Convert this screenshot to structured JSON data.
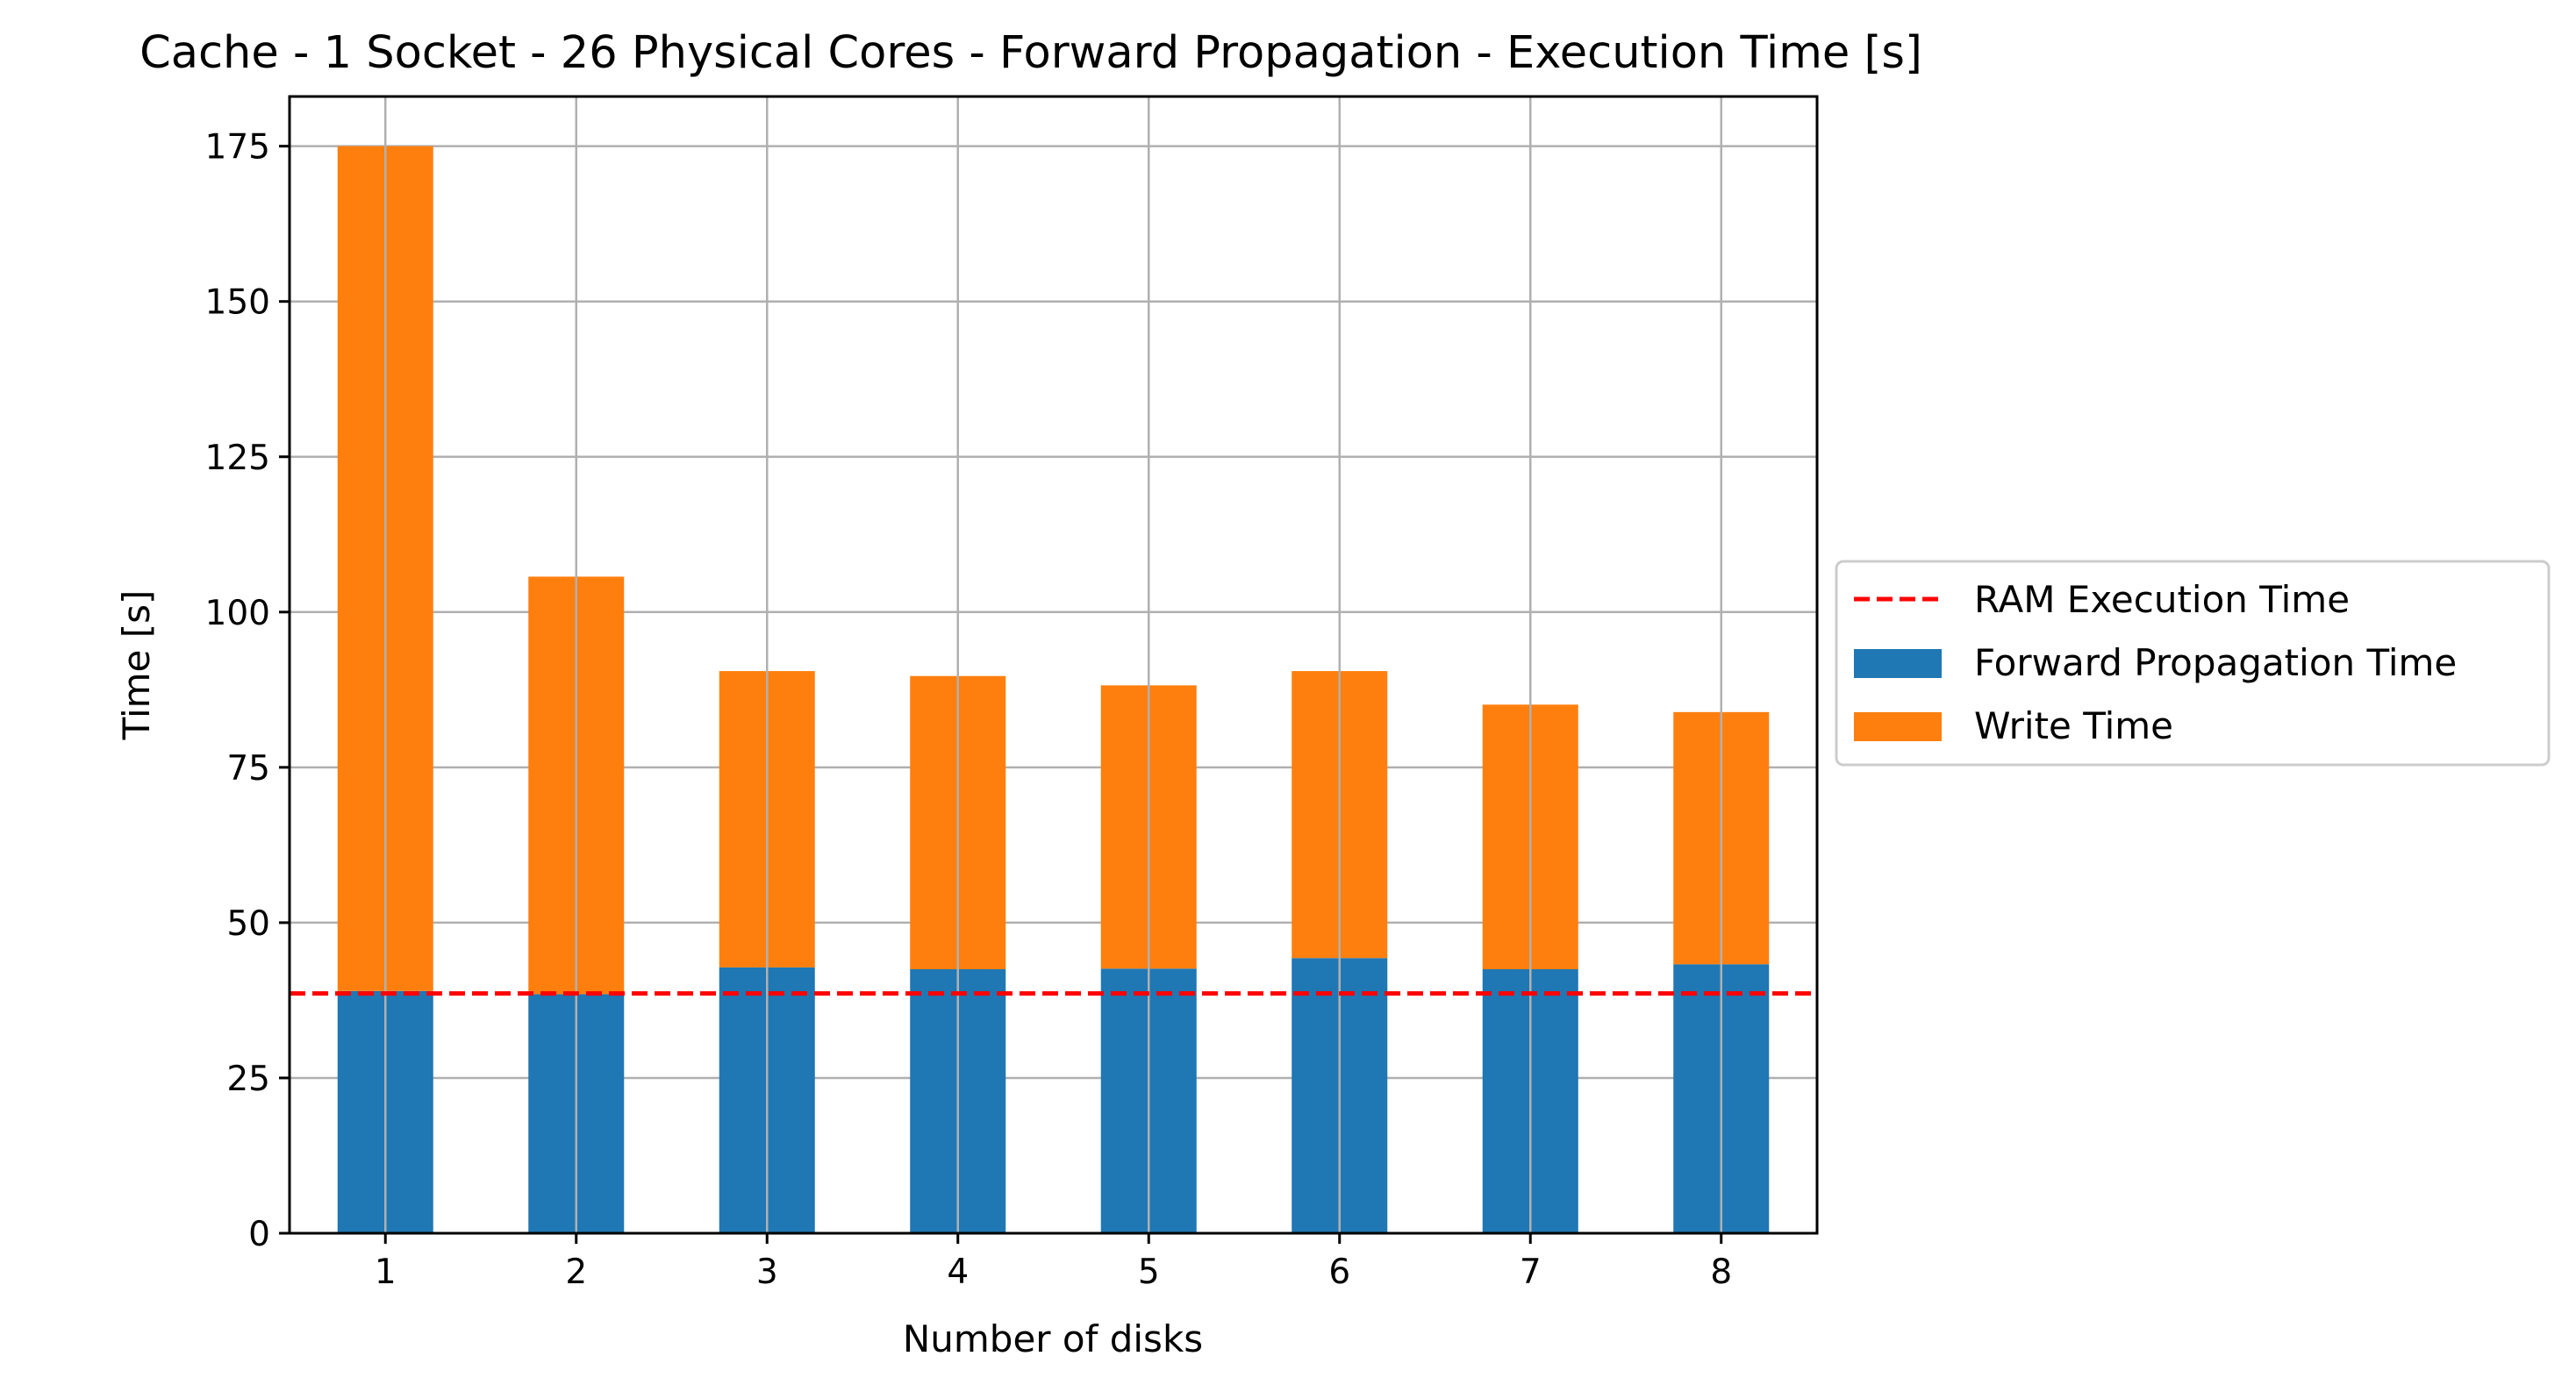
{
  "chart_data": {
    "type": "bar",
    "stacked": true,
    "title": "Cache - 1 Socket - 26 Physical Cores - Forward Propagation - Execution Time [s]",
    "xlabel": "Number of disks",
    "ylabel": "Time [s]",
    "categories": [
      "1",
      "2",
      "3",
      "4",
      "5",
      "6",
      "7",
      "8"
    ],
    "ylim": [
      0,
      183
    ],
    "yticks": [
      0,
      25,
      50,
      75,
      100,
      125,
      150,
      175
    ],
    "grid": true,
    "legend_position": "right, outside plot area",
    "series": [
      {
        "name": "Forward Propagation Time",
        "color": "#1f77b4",
        "values": [
          39.0,
          38.5,
          42.8,
          42.5,
          42.6,
          44.3,
          42.5,
          43.3
        ]
      },
      {
        "name": "Write Time",
        "color": "#ff7f0e",
        "values": [
          136.0,
          67.2,
          47.7,
          47.2,
          45.6,
          46.2,
          42.6,
          40.6
        ]
      }
    ],
    "reference_line": {
      "name": "RAM Execution Time",
      "value": 38.6,
      "color": "#ff0000",
      "style": "dashed"
    }
  }
}
